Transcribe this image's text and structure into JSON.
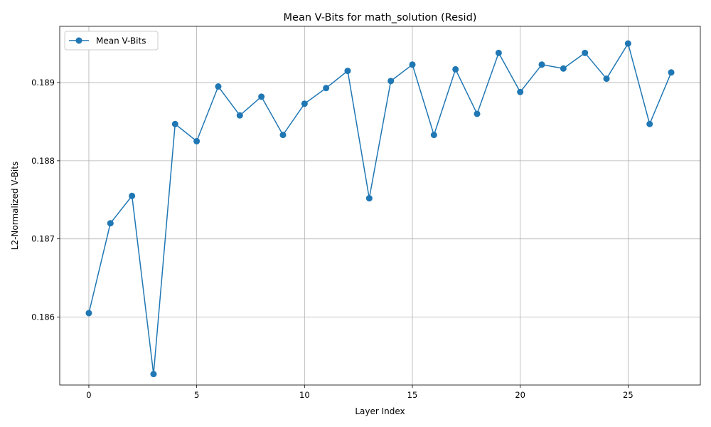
{
  "chart_data": {
    "type": "line",
    "title": "Mean V-Bits for math_solution (Resid)",
    "xlabel": "Layer Index",
    "ylabel": "L2-Normalized V-Bits",
    "xlim": [
      -1.35,
      28.35
    ],
    "ylim": [
      0.18513,
      0.18972
    ],
    "xticks": [
      0,
      5,
      10,
      15,
      20,
      25
    ],
    "xtick_labels": [
      "0",
      "5",
      "10",
      "15",
      "20",
      "25"
    ],
    "yticks": [
      0.186,
      0.187,
      0.188,
      0.189
    ],
    "ytick_labels": [
      "0.186",
      "0.187",
      "0.188",
      "0.189"
    ],
    "grid": true,
    "legend_position": "top-left",
    "color": "#1f77b4",
    "series": [
      {
        "name": "Mean V-Bits",
        "x": [
          0,
          1,
          2,
          3,
          4,
          5,
          6,
          7,
          8,
          9,
          10,
          11,
          12,
          13,
          14,
          15,
          16,
          17,
          18,
          19,
          20,
          21,
          22,
          23,
          24,
          25,
          26,
          27
        ],
        "values": [
          0.18605,
          0.1872,
          0.18755,
          0.18527,
          0.18847,
          0.18825,
          0.18895,
          0.18858,
          0.18882,
          0.18833,
          0.18873,
          0.18893,
          0.18915,
          0.18752,
          0.18902,
          0.18923,
          0.18833,
          0.18917,
          0.1886,
          0.18938,
          0.18888,
          0.18923,
          0.18918,
          0.18938,
          0.18905,
          0.1895,
          0.18847,
          0.18913
        ]
      }
    ]
  }
}
